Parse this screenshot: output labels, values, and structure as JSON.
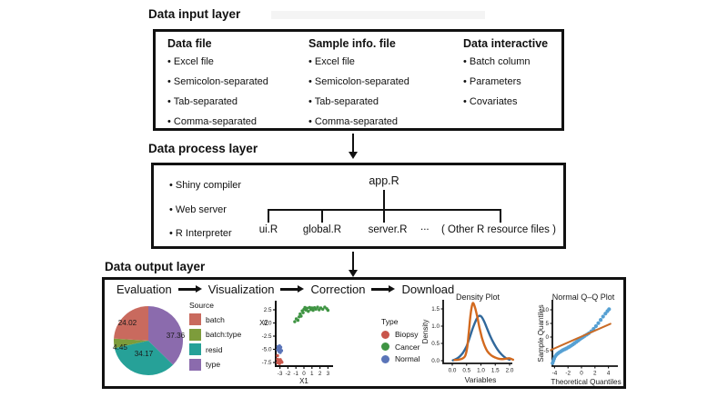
{
  "input_layer": {
    "title": "Data input layer",
    "columns": [
      {
        "header": "Data file",
        "items": [
          "Excel file",
          "Semicolon-separated",
          "Tab-separated",
          "Comma-separated"
        ]
      },
      {
        "header": "Sample info. file",
        "items": [
          "Excel file",
          "Semicolon-separated",
          "Tab-separated",
          "Comma-separated"
        ]
      },
      {
        "header": "Data interactive",
        "items": [
          "Batch column",
          "Parameters",
          "Covariates"
        ]
      }
    ]
  },
  "process_layer": {
    "title": "Data process layer",
    "items": [
      "Shiny compiler",
      "Web server",
      "R Interpreter"
    ],
    "tree": {
      "root": "app.R",
      "children": [
        "ui.R",
        "global.R",
        "server.R"
      ],
      "ellipsis": "...",
      "other": "( Other R resource files )"
    }
  },
  "output_layer": {
    "title": "Data output layer",
    "steps": [
      "Evaluation",
      "Visualization",
      "Correction",
      "Download"
    ]
  },
  "chart_data": [
    {
      "type": "pie",
      "legend_title": "Source",
      "slices": [
        {
          "label": "type",
          "value": 37.36,
          "color": "#8b6bad"
        },
        {
          "label": "resid",
          "value": 34.17,
          "color": "#26a198"
        },
        {
          "label": "batch:type",
          "value": 4.45,
          "color": "#7d9c3b"
        },
        {
          "label": "batch",
          "value": 24.02,
          "color": "#c96a5e"
        }
      ],
      "legend": [
        {
          "label": "batch",
          "color": "#c96a5e"
        },
        {
          "label": "batch:type",
          "color": "#7d9c3b"
        },
        {
          "label": "resid",
          "color": "#26a198"
        },
        {
          "label": "type",
          "color": "#8b6bad"
        }
      ]
    },
    {
      "type": "scatter",
      "xlabel": "X1",
      "ylabel": "X2",
      "xticks": [
        -3,
        -2,
        -1,
        0,
        1,
        2,
        3
      ],
      "xtick_labels": [
        "-3",
        "-2",
        "-1",
        "0",
        "1",
        "2",
        "3"
      ],
      "yticks": [
        2.5,
        0,
        -2.5,
        -5,
        -7.5
      ],
      "ytick_labels": [
        "2.5",
        "0.0",
        "-2.5",
        "-5.0",
        "-7.5"
      ],
      "legend_title": "Type",
      "series": [
        {
          "name": "Biopsy",
          "color": "#c9564b",
          "points": [
            [
              -3.3,
              -6.2
            ],
            [
              -3.3,
              -6.9
            ],
            [
              -3.1,
              -7.1
            ],
            [
              -2.95,
              -6.95
            ],
            [
              -3.2,
              -7.35
            ],
            [
              -3.0,
              -7.5
            ],
            [
              -2.85,
              -7.25
            ],
            [
              -3.3,
              -7.55
            ],
            [
              -2.75,
              -7.45
            ],
            [
              -3.05,
              -7.7
            ]
          ]
        },
        {
          "name": "Cancer",
          "color": "#3f9443",
          "points": [
            [
              -1.15,
              0.25
            ],
            [
              -0.95,
              0.8
            ],
            [
              -0.75,
              0.5
            ],
            [
              -0.6,
              1.15
            ],
            [
              -0.48,
              1.7
            ],
            [
              -0.35,
              1.3
            ],
            [
              -0.22,
              2.3
            ],
            [
              -0.1,
              1.95
            ],
            [
              0.0,
              2.6
            ],
            [
              0.12,
              2.95
            ],
            [
              0.25,
              2.45
            ],
            [
              0.4,
              2.8
            ],
            [
              0.55,
              2.2
            ],
            [
              0.7,
              2.95
            ],
            [
              0.85,
              2.55
            ],
            [
              1.0,
              2.85
            ],
            [
              1.15,
              2.4
            ],
            [
              1.32,
              2.9
            ],
            [
              1.5,
              2.6
            ],
            [
              1.7,
              3.0
            ],
            [
              1.9,
              2.5
            ],
            [
              2.1,
              2.85
            ],
            [
              2.35,
              2.6
            ],
            [
              2.6,
              3.0
            ],
            [
              2.85,
              2.7
            ],
            [
              3.0,
              2.4
            ]
          ]
        },
        {
          "name": "Normal",
          "color": "#5a74b8",
          "points": [
            [
              -3.25,
              -4.5
            ],
            [
              -3.05,
              -4.35
            ],
            [
              -2.9,
              -4.6
            ],
            [
              -3.15,
              -4.85
            ],
            [
              -2.95,
              -5.0
            ],
            [
              -3.3,
              -5.1
            ],
            [
              -2.8,
              -5.25
            ],
            [
              -3.1,
              -5.45
            ],
            [
              -2.95,
              -5.6
            ],
            [
              -3.2,
              -4.7
            ]
          ]
        }
      ]
    },
    {
      "type": "line",
      "title": "Density Plot",
      "xlabel": "Variables",
      "ylabel": "Density",
      "xticks": [
        0,
        0.5,
        1,
        1.5,
        2
      ],
      "xtick_labels": [
        "0.0",
        "0.5",
        "1.0",
        "1.5",
        "2.0"
      ],
      "yticks": [
        0,
        0.5,
        1,
        1.5
      ],
      "ytick_labels": [
        "0.0",
        "0.5",
        "1.0",
        "1.5"
      ],
      "series": [
        {
          "color": "#31689b",
          "points": [
            [
              0.02,
              0.01
            ],
            [
              0.14,
              0.05
            ],
            [
              0.26,
              0.12
            ],
            [
              0.38,
              0.24
            ],
            [
              0.5,
              0.42
            ],
            [
              0.6,
              0.65
            ],
            [
              0.7,
              0.9
            ],
            [
              0.79,
              1.1
            ],
            [
              0.87,
              1.24
            ],
            [
              0.95,
              1.3
            ],
            [
              1.03,
              1.26
            ],
            [
              1.12,
              1.12
            ],
            [
              1.22,
              0.92
            ],
            [
              1.33,
              0.7
            ],
            [
              1.45,
              0.5
            ],
            [
              1.58,
              0.32
            ],
            [
              1.72,
              0.18
            ],
            [
              1.86,
              0.08
            ],
            [
              2.0,
              0.03
            ]
          ]
        },
        {
          "color": "#d2691e",
          "points": [
            [
              0.08,
              0.02
            ],
            [
              0.22,
              0.03
            ],
            [
              0.35,
              0.06
            ],
            [
              0.45,
              0.14
            ],
            [
              0.52,
              0.38
            ],
            [
              0.58,
              0.85
            ],
            [
              0.64,
              1.35
            ],
            [
              0.7,
              1.63
            ],
            [
              0.74,
              1.66
            ],
            [
              0.8,
              1.52
            ],
            [
              0.87,
              1.28
            ],
            [
              0.95,
              0.95
            ],
            [
              1.03,
              0.68
            ],
            [
              1.12,
              0.45
            ],
            [
              1.22,
              0.28
            ],
            [
              1.35,
              0.16
            ],
            [
              1.5,
              0.09
            ],
            [
              1.65,
              0.05
            ],
            [
              1.82,
              0.05
            ],
            [
              1.98,
              0.07
            ],
            [
              2.12,
              0.03
            ]
          ]
        }
      ]
    },
    {
      "type": "scatter",
      "title": "Normal Q–Q Plot",
      "xlabel": "Theoretical Quantiles",
      "ylabel": "Sample Quantiles",
      "xticks": [
        -4,
        -2,
        0,
        2,
        4
      ],
      "xtick_labels": [
        "-4",
        "-2",
        "0",
        "2",
        "4"
      ],
      "yticks": [
        -5,
        0,
        5,
        10
      ],
      "ytick_labels": [
        "-5",
        "0",
        "5",
        "10"
      ],
      "points_color": "#56a0d3",
      "ref_line_color": "#ca6b26",
      "ref_line": [
        [
          -4.55,
          -4.75
        ],
        [
          4.3,
          4.85
        ]
      ],
      "points": [
        [
          -4.3,
          -9.6
        ],
        [
          -4.18,
          -8.7
        ],
        [
          -4.05,
          -7.9
        ],
        [
          -3.9,
          -7.1
        ],
        [
          -3.72,
          -6.5
        ],
        [
          -3.5,
          -6.0
        ],
        [
          -3.25,
          -5.55
        ],
        [
          -3.0,
          -5.15
        ],
        [
          -2.75,
          -4.8
        ],
        [
          -2.5,
          -4.5
        ],
        [
          -2.25,
          -4.2
        ],
        [
          -2.0,
          -3.85
        ],
        [
          -1.75,
          -3.5
        ],
        [
          -1.5,
          -3.1
        ],
        [
          -1.25,
          -2.65
        ],
        [
          -1.0,
          -2.2
        ],
        [
          -0.75,
          -1.75
        ],
        [
          -0.5,
          -1.3
        ],
        [
          -0.25,
          -0.85
        ],
        [
          0.0,
          -0.4
        ],
        [
          0.25,
          0.05
        ],
        [
          0.5,
          0.45
        ],
        [
          0.8,
          0.9
        ],
        [
          1.1,
          1.4
        ],
        [
          1.45,
          2.1
        ],
        [
          1.8,
          3.0
        ],
        [
          2.15,
          4.0
        ],
        [
          2.5,
          5.1
        ],
        [
          2.85,
          6.3
        ],
        [
          3.2,
          7.5
        ],
        [
          3.55,
          8.6
        ],
        [
          3.85,
          9.5
        ],
        [
          4.1,
          10.2
        ]
      ]
    }
  ]
}
